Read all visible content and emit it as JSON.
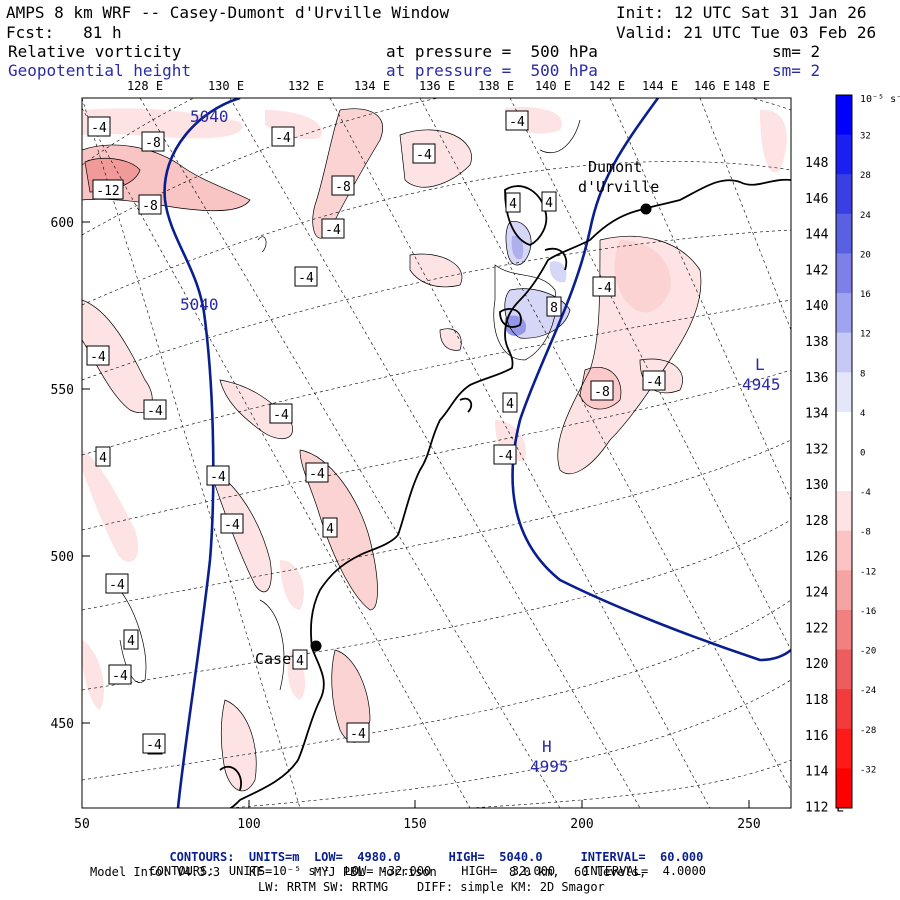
{
  "header": {
    "title": "AMPS 8 km WRF -- Casey-Dumont d'Urville Window",
    "init": "Init: 12 UTC Sat 31 Jan 26",
    "fcst": "Fcst:   81 h",
    "valid": "Valid: 21 UTC Tue 03 Feb 26",
    "field1": "Relative vorticity",
    "field1_level": "at pressure =  500 hPa",
    "field1_sm": "sm= 2",
    "field2": "Geopotential height",
    "field2_level": "at pressure =  500 hPa",
    "field2_sm": "sm= 2"
  },
  "colors": {
    "geopotential": "#0a1f8f",
    "grid_lines": "#000000",
    "coastline": "#000000",
    "max_blue": "#0000ff",
    "max_red": "#ff0000"
  },
  "longitudes_top": [
    "128 E",
    "130 E",
    "132 E",
    "134 E",
    "136 E",
    "138 E",
    "140 E",
    "142 E",
    "144 E",
    "146 E",
    "148 E"
  ],
  "latitudes_right": [
    "148 E",
    "146 E",
    "144 E",
    "142 E",
    "140 E",
    "138 E",
    "136 E",
    "134 E",
    "132 E",
    "130 E",
    "128 E",
    "126 E",
    "124 E",
    "122 E",
    "120 E",
    "118 E",
    "116 E",
    "114 E",
    "112 E"
  ],
  "y_axis_ticks": [
    "600",
    "550",
    "500",
    "450"
  ],
  "x_axis_ticks": [
    "50",
    "100",
    "150",
    "200",
    "250"
  ],
  "colorbar": {
    "unit_label": "10⁻⁵ s⁻¹",
    "labels": [
      "32",
      "28",
      "24",
      "20",
      "16",
      "12",
      "8",
      "4",
      "0",
      "-4",
      "-8",
      "-12",
      "-16",
      "-20",
      "-24",
      "-28",
      "-32"
    ]
  },
  "stations": [
    {
      "name": "Dumont d'Urville",
      "line1": "Dumont",
      "line2": "d'Urville"
    },
    {
      "name": "Casey",
      "line1": "Casey"
    }
  ],
  "height_labels": [
    {
      "text": "5040"
    },
    {
      "text": "5040"
    }
  ],
  "centers": [
    {
      "symbol": "L",
      "value": "4945"
    },
    {
      "symbol": "H",
      "value": "4995"
    }
  ],
  "vort_labels": [
    "-4",
    "-8",
    "-4",
    "-4",
    "-12",
    "-8",
    "-8",
    "-4",
    "-4",
    "-4",
    "4",
    "4",
    "-4",
    "-4",
    "8",
    "-4",
    "-8",
    "-4",
    "-4",
    "4",
    "-4",
    "4",
    "-4",
    "-4",
    "-4",
    "4",
    "-4",
    "4",
    "4",
    "-4",
    "-4",
    "4",
    "-4"
  ],
  "footer": {
    "contours1_a": "CONTOURS:  UNITS=m  LOW=  4980.0",
    "contours1_b": "HIGH=  5040.0",
    "contours1_c": "INTERVAL=  60.000",
    "contours2_a": "CONTOURS:  UNITS=10⁻⁵ s⁻¹  LOW= -32.000",
    "contours2_b": "HIGH=  32.000",
    "contours2_c": "INTERVAL=  4.0000",
    "model_info1": "Model Info: V4.3.3    KF       MYJ PBL  Morrison          8.0 km,  60 levels,",
    "model_info2": "LW: RRTM SW: RRTMG    DIFF: simple KM: 2D Smagor"
  }
}
